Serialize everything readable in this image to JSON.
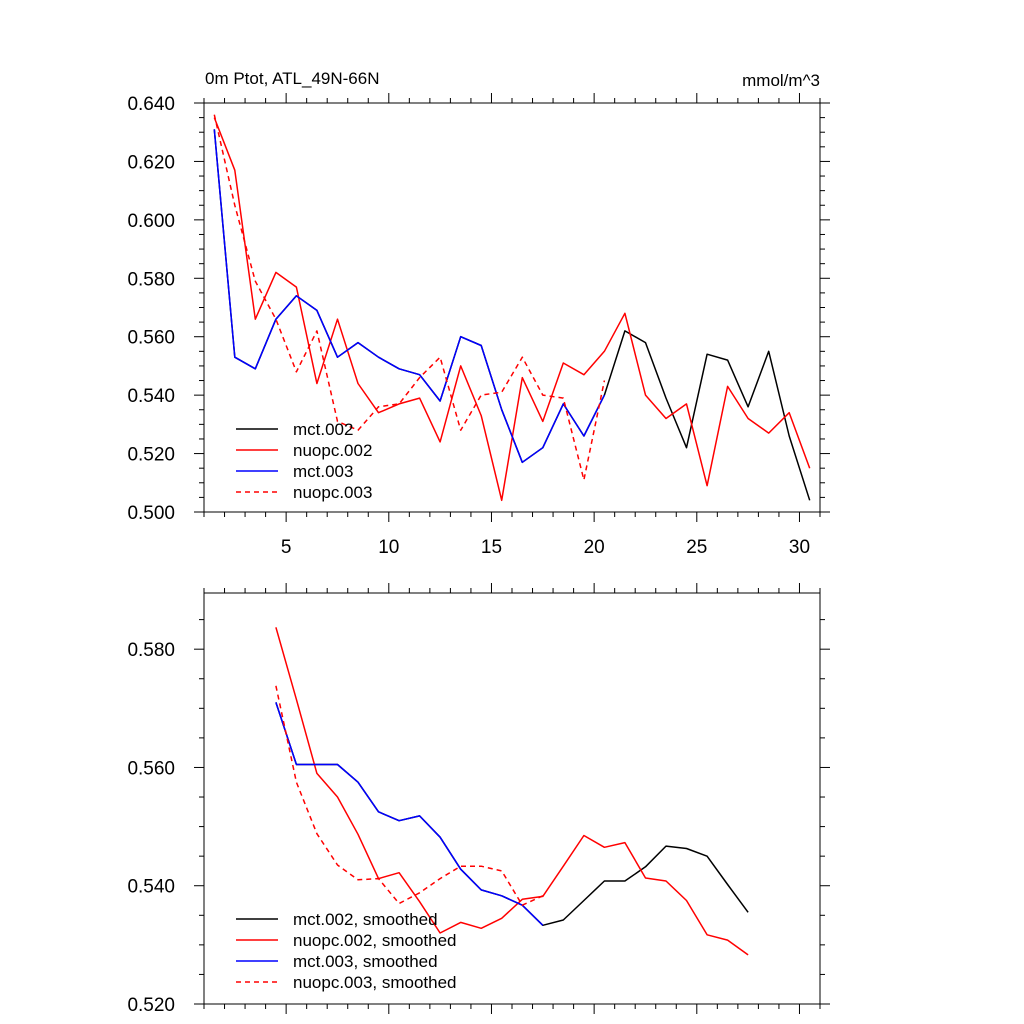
{
  "chart_data": [
    {
      "type": "line",
      "title": "0m Ptot, ATL_49N-66N",
      "units": "mmol/m^3",
      "xlabel": "",
      "ylabel": "",
      "xlim": [
        1,
        31
      ],
      "ylim": [
        0.5,
        0.64
      ],
      "x_ticks": [
        5,
        10,
        15,
        20,
        25,
        30
      ],
      "x_tick_labels": [
        "5",
        "10",
        "15",
        "20",
        "25",
        "30"
      ],
      "y_ticks": [
        0.5,
        0.52,
        0.54,
        0.56,
        0.58,
        0.6,
        0.62,
        0.64
      ],
      "y_tick_labels": [
        "0.500",
        "0.520",
        "0.540",
        "0.560",
        "0.580",
        "0.600",
        "0.620",
        "0.640"
      ],
      "legend_position": "bottom-left",
      "series": [
        {
          "name": "mct.002",
          "color": "#000000",
          "dash": "solid",
          "x": [
            1.5,
            2.5,
            3.5,
            4.5,
            5.5,
            6.5,
            7.5,
            8.5,
            9.5,
            10.5,
            11.5,
            12.5,
            13.5,
            14.5,
            15.5,
            16.5,
            17.5,
            18.5,
            19.5,
            20.5,
            21.5,
            22.5,
            23.5,
            24.5,
            25.5,
            26.5,
            27.5,
            28.5,
            29.5,
            30.5
          ],
          "values": [
            0.631,
            0.553,
            0.549,
            0.566,
            0.574,
            0.569,
            0.553,
            0.558,
            0.553,
            0.549,
            0.547,
            0.538,
            0.56,
            0.557,
            0.535,
            0.517,
            0.522,
            0.537,
            0.526,
            0.54,
            0.562,
            0.558,
            0.539,
            0.522,
            0.554,
            0.552,
            0.536,
            0.555,
            0.526,
            0.504
          ]
        },
        {
          "name": "nuopc.002",
          "color": "#ff0000",
          "dash": "solid",
          "x": [
            1.5,
            2.5,
            3.5,
            4.5,
            5.5,
            6.5,
            7.5,
            8.5,
            9.5,
            10.5,
            11.5,
            12.5,
            13.5,
            14.5,
            15.5,
            16.5,
            17.5,
            18.5,
            19.5,
            20.5,
            21.5,
            22.5,
            23.5,
            24.5,
            25.5,
            26.5,
            27.5,
            28.5,
            29.5,
            30.5
          ],
          "values": [
            0.635,
            0.617,
            0.566,
            0.582,
            0.577,
            0.544,
            0.566,
            0.544,
            0.534,
            0.537,
            0.539,
            0.524,
            0.55,
            0.533,
            0.504,
            0.546,
            0.531,
            0.551,
            0.547,
            0.555,
            0.568,
            0.54,
            0.532,
            0.537,
            0.509,
            0.543,
            0.532,
            0.527,
            0.534,
            0.515
          ]
        },
        {
          "name": "mct.003",
          "color": "#0000ff",
          "dash": "solid",
          "x": [
            1.5,
            2.5,
            3.5,
            4.5,
            5.5,
            6.5,
            7.5,
            8.5,
            9.5,
            10.5,
            11.5,
            12.5,
            13.5,
            14.5,
            15.5,
            16.5,
            17.5,
            18.5,
            19.5,
            20.5
          ],
          "values": [
            0.631,
            0.553,
            0.549,
            0.566,
            0.574,
            0.569,
            0.553,
            0.558,
            0.553,
            0.549,
            0.547,
            0.538,
            0.56,
            0.557,
            0.535,
            0.517,
            0.522,
            0.537,
            0.526,
            0.54
          ]
        },
        {
          "name": "nuopc.003",
          "color": "#ff0000",
          "dash": "dashed",
          "x": [
            1.5,
            2.5,
            3.5,
            4.5,
            5.5,
            6.5,
            7.5,
            8.5,
            9.5,
            10.5,
            11.5,
            12.5,
            13.5,
            14.5,
            15.5,
            16.5,
            17.5,
            18.5,
            19.5,
            20.5
          ],
          "values": [
            0.636,
            0.605,
            0.579,
            0.566,
            0.548,
            0.562,
            0.531,
            0.528,
            0.536,
            0.537,
            0.546,
            0.553,
            0.528,
            0.54,
            0.541,
            0.553,
            0.54,
            0.539,
            0.511,
            0.545
          ]
        }
      ]
    },
    {
      "type": "line",
      "title": "",
      "xlabel": "",
      "ylabel": "",
      "xlim": [
        1,
        31
      ],
      "ylim": [
        0.52,
        0.5895
      ],
      "x_ticks": [
        5,
        10,
        15,
        20,
        25,
        30
      ],
      "x_tick_labels": [
        "",
        "",
        "",
        "",
        "",
        ""
      ],
      "y_ticks": [
        0.52,
        0.54,
        0.56,
        0.58
      ],
      "y_tick_labels": [
        "0.520",
        "0.540",
        "0.560",
        "0.580"
      ],
      "legend_position": "bottom-left",
      "series": [
        {
          "name": "mct.002, smoothed",
          "color": "#000000",
          "dash": "solid",
          "x": [
            4.5,
            5.5,
            6.5,
            7.5,
            8.5,
            9.5,
            10.5,
            11.5,
            12.5,
            13.5,
            14.5,
            15.5,
            16.5,
            17.5,
            18.5,
            19.5,
            20.5,
            21.5,
            22.5,
            23.5,
            24.5,
            25.5,
            26.5,
            27.5
          ],
          "values": [
            0.571,
            0.5605,
            0.5605,
            0.5605,
            0.5575,
            0.5525,
            0.551,
            0.5518,
            0.5482,
            0.5428,
            0.5393,
            0.5383,
            0.5367,
            0.5333,
            0.5342,
            0.5375,
            0.5408,
            0.5408,
            0.5432,
            0.5467,
            0.5463,
            0.545,
            0.5402,
            0.5355
          ]
        },
        {
          "name": "nuopc.002, smoothed",
          "color": "#ff0000",
          "dash": "solid",
          "x": [
            4.5,
            5.5,
            6.5,
            7.5,
            8.5,
            9.5,
            10.5,
            11.5,
            12.5,
            13.5,
            14.5,
            15.5,
            16.5,
            17.5,
            18.5,
            19.5,
            20.5,
            21.5,
            22.5,
            23.5,
            24.5,
            25.5,
            26.5,
            27.5
          ],
          "values": [
            0.5837,
            0.5715,
            0.559,
            0.555,
            0.5487,
            0.5412,
            0.5422,
            0.5373,
            0.532,
            0.5338,
            0.5328,
            0.5345,
            0.5377,
            0.5382,
            0.5433,
            0.5485,
            0.5465,
            0.5473,
            0.5413,
            0.5408,
            0.5375,
            0.5317,
            0.5308,
            0.5283
          ]
        },
        {
          "name": "mct.003, smoothed",
          "color": "#0000ff",
          "dash": "solid",
          "x": [
            4.5,
            5.5,
            6.5,
            7.5,
            8.5,
            9.5,
            10.5,
            11.5,
            12.5,
            13.5,
            14.5,
            15.5,
            16.5,
            17.5
          ],
          "values": [
            0.571,
            0.5605,
            0.5605,
            0.5605,
            0.5575,
            0.5525,
            0.551,
            0.5518,
            0.5482,
            0.5428,
            0.5393,
            0.5383,
            0.5367,
            0.5333
          ]
        },
        {
          "name": "nuopc.003, smoothed",
          "color": "#ff0000",
          "dash": "dashed",
          "x": [
            4.5,
            5.5,
            6.5,
            7.5,
            8.5,
            9.5,
            10.5,
            11.5,
            12.5,
            13.5,
            14.5,
            15.5,
            16.5,
            17.5
          ],
          "values": [
            0.5738,
            0.5575,
            0.5488,
            0.5435,
            0.541,
            0.5412,
            0.537,
            0.5388,
            0.5412,
            0.5433,
            0.5433,
            0.5425,
            0.5367,
            0.5383
          ]
        }
      ]
    }
  ]
}
